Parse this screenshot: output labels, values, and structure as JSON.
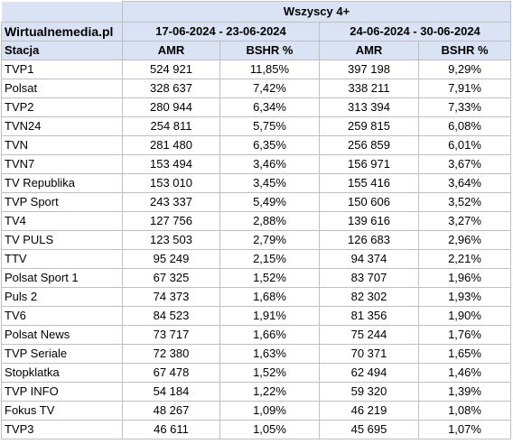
{
  "table": {
    "brand": "Wirtualnemedia.pl",
    "group_header": "Wszyscy 4+",
    "period1": "17-06-2024 - 23-06-2024",
    "period2": "24-06-2024 - 30-06-2024",
    "station_header": "Stacja",
    "amr_header": "AMR",
    "bshr_header": "BSHR %",
    "rows": [
      {
        "station": "TVP1",
        "amr1": "524 921",
        "bshr1": "11,85%",
        "amr2": "397 198",
        "bshr2": "9,29%"
      },
      {
        "station": "Polsat",
        "amr1": "328 637",
        "bshr1": "7,42%",
        "amr2": "338 211",
        "bshr2": "7,91%"
      },
      {
        "station": "TVP2",
        "amr1": "280 944",
        "bshr1": "6,34%",
        "amr2": "313 394",
        "bshr2": "7,33%"
      },
      {
        "station": "TVN24",
        "amr1": "254 811",
        "bshr1": "5,75%",
        "amr2": "259 815",
        "bshr2": "6,08%"
      },
      {
        "station": "TVN",
        "amr1": "281 480",
        "bshr1": "6,35%",
        "amr2": "256 859",
        "bshr2": "6,01%"
      },
      {
        "station": "TVN7",
        "amr1": "153 494",
        "bshr1": "3,46%",
        "amr2": "156 971",
        "bshr2": "3,67%"
      },
      {
        "station": "TV Republika",
        "amr1": "153 010",
        "bshr1": "3,45%",
        "amr2": "155 416",
        "bshr2": "3,64%"
      },
      {
        "station": "TVP Sport",
        "amr1": "243 337",
        "bshr1": "5,49%",
        "amr2": "150 606",
        "bshr2": "3,52%"
      },
      {
        "station": "TV4",
        "amr1": "127 756",
        "bshr1": "2,88%",
        "amr2": "139 616",
        "bshr2": "3,27%"
      },
      {
        "station": "TV PULS",
        "amr1": "123 503",
        "bshr1": "2,79%",
        "amr2": "126 683",
        "bshr2": "2,96%"
      },
      {
        "station": "TTV",
        "amr1": "95 249",
        "bshr1": "2,15%",
        "amr2": "94 374",
        "bshr2": "2,21%"
      },
      {
        "station": "Polsat Sport 1",
        "amr1": "67 325",
        "bshr1": "1,52%",
        "amr2": "83 707",
        "bshr2": "1,96%"
      },
      {
        "station": "Puls 2",
        "amr1": "74 373",
        "bshr1": "1,68%",
        "amr2": "82 302",
        "bshr2": "1,93%"
      },
      {
        "station": "TV6",
        "amr1": "84 523",
        "bshr1": "1,91%",
        "amr2": "81 356",
        "bshr2": "1,90%"
      },
      {
        "station": "Polsat News",
        "amr1": "73 717",
        "bshr1": "1,66%",
        "amr2": "75 244",
        "bshr2": "1,76%"
      },
      {
        "station": "TVP Seriale",
        "amr1": "72 380",
        "bshr1": "1,63%",
        "amr2": "70 371",
        "bshr2": "1,65%"
      },
      {
        "station": "Stopklatka",
        "amr1": "67 478",
        "bshr1": "1,52%",
        "amr2": "62 494",
        "bshr2": "1,46%"
      },
      {
        "station": "TVP INFO",
        "amr1": "54 184",
        "bshr1": "1,22%",
        "amr2": "59 320",
        "bshr2": "1,39%"
      },
      {
        "station": "Fokus TV",
        "amr1": "48 267",
        "bshr1": "1,09%",
        "amr2": "46 219",
        "bshr2": "1,08%"
      },
      {
        "station": "TVP3",
        "amr1": "46 611",
        "bshr1": "1,05%",
        "amr2": "45 695",
        "bshr2": "1,07%"
      }
    ]
  }
}
